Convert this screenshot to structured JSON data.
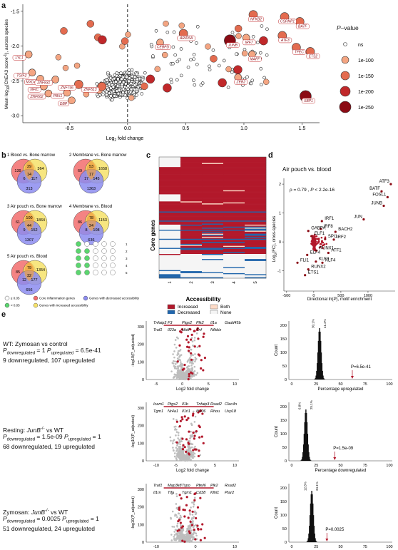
{
  "panels": {
    "a": "a",
    "b": "b",
    "c": "c",
    "d": "d",
    "e": "e"
  },
  "chart_data": [
    {
      "id": "a",
      "type": "scatter",
      "xlabel": "Log2 fold change",
      "ylabel": "Mean log10(ChEA3 score⁻¹), across species",
      "xlim": [
        -0.9,
        1.65
      ],
      "ylim": [
        -3.1,
        -1.4
      ],
      "xticks": [
        "-0.5",
        "0.0",
        "0.5",
        "1.0",
        "1.5"
      ],
      "yticks": [
        "-1.5",
        "-2.0",
        "-2.5",
        "-3.0"
      ],
      "legend": {
        "title": "P-value",
        "items": [
          "ns",
          "1e-100",
          "1e-150",
          "1e-200",
          "1e-250"
        ],
        "colors": [
          "#ffffff",
          "#f4a582",
          "#e36b4f",
          "#c0282a",
          "#8b0b14"
        ]
      },
      "labeled_points": [
        {
          "name": "NFKB2",
          "x": 1.08,
          "y": -1.55,
          "p": "1e-150"
        },
        {
          "name": "CSRNP1",
          "x": 1.35,
          "y": -1.58,
          "p": "1e-150"
        },
        {
          "name": "BATF",
          "x": 1.48,
          "y": -1.65,
          "p": "1e-150"
        },
        {
          "name": "ARID5A",
          "x": 0.48,
          "y": -1.82,
          "p": "1e-150"
        },
        {
          "name": "CEBPD",
          "x": 0.28,
          "y": -1.95,
          "p": "1e-100"
        },
        {
          "name": "JUNB",
          "x": 0.88,
          "y": -1.92,
          "p": "1e-250"
        },
        {
          "name": "IRF7",
          "x": 1.02,
          "y": -1.88,
          "p": "1e-100"
        },
        {
          "name": "ATF3",
          "x": 1.33,
          "y": -1.85,
          "p": "1e-150"
        },
        {
          "name": "TFEC",
          "x": 1.45,
          "y": -2.02,
          "p": "1e-150"
        },
        {
          "name": "ETS2",
          "x": 1.57,
          "y": -2.08,
          "p": "1e-150"
        },
        {
          "name": "MAFF",
          "x": 1.07,
          "y": -2.12,
          "p": "1e-100"
        },
        {
          "name": "ZEB2",
          "x": 0.95,
          "y": -2.45,
          "p": "1e-100"
        },
        {
          "name": "XBP1",
          "x": 1.53,
          "y": -2.72,
          "p": "1e-250"
        },
        {
          "name": "LYL1",
          "x": -0.85,
          "y": -2.12,
          "p": "1e-100"
        },
        {
          "name": "TGIF2",
          "x": -0.82,
          "y": -2.38,
          "p": "1e-100"
        },
        {
          "name": "MXD4",
          "x": -0.75,
          "y": -2.47,
          "p": "1e-100"
        },
        {
          "name": "ZNF831",
          "x": -0.62,
          "y": -2.48,
          "p": "1e-100"
        },
        {
          "name": "ZNF746",
          "x": -0.42,
          "y": -2.55,
          "p": "1e-150"
        },
        {
          "name": "NFIC",
          "x": -0.72,
          "y": -2.58,
          "p": "1e-100"
        },
        {
          "name": "ZNF513",
          "x": -0.22,
          "y": -2.58,
          "p": "1e-150"
        },
        {
          "name": "PBX1",
          "x": -0.52,
          "y": -2.67,
          "p": "1e-100"
        },
        {
          "name": "ZNF662",
          "x": -0.68,
          "y": -2.68,
          "p": "1e-100"
        },
        {
          "name": "DBP",
          "x": -0.48,
          "y": -2.78,
          "p": "1e-100"
        }
      ]
    },
    {
      "id": "d",
      "type": "scatter",
      "title": "Air pouch vs. blood",
      "xlabel": "Directional ln(P), motif enrichment",
      "ylabel": "Log2(FC), cross-species",
      "annotation": "ρ = 0.79 , P < 2.2e-16",
      "xlim": [
        -550,
        1500
      ],
      "ylim": [
        -1.7,
        2.2
      ],
      "xticks": [
        "-500",
        "0",
        "500",
        "1000"
      ],
      "yticks": [
        "2",
        "1",
        "0",
        "-1"
      ],
      "labeled_points": [
        {
          "name": "ATF3",
          "x": 1420,
          "y": 2.0
        },
        {
          "name": "BATF",
          "x": 1250,
          "y": 1.75
        },
        {
          "name": "FOSL1",
          "x": 1360,
          "y": 1.55
        },
        {
          "name": "JUNB",
          "x": 1290,
          "y": 1.25
        },
        {
          "name": "JUN",
          "x": 920,
          "y": 0.78
        },
        {
          "name": "IRF1",
          "x": 150,
          "y": 0.72
        },
        {
          "name": "BACH2",
          "x": 400,
          "y": 0.35
        },
        {
          "name": "IRF8",
          "x": 130,
          "y": 0.45
        },
        {
          "name": "GABPA",
          "x": -100,
          "y": 0.38
        },
        {
          "name": "IRF2",
          "x": 370,
          "y": 0.08
        },
        {
          "name": "SPI1",
          "x": 210,
          "y": 0.1
        },
        {
          "name": "ELF1",
          "x": -40,
          "y": 0.2
        },
        {
          "name": "RUNX1",
          "x": 50,
          "y": -0.3
        },
        {
          "name": "ATF1",
          "x": 270,
          "y": -0.38
        },
        {
          "name": "ELF4",
          "x": -120,
          "y": -0.45
        },
        {
          "name": "KLF3",
          "x": 40,
          "y": -0.68
        },
        {
          "name": "KLF4",
          "x": 160,
          "y": -0.72
        },
        {
          "name": "FLI1",
          "x": -300,
          "y": -0.72
        },
        {
          "name": "RUNX2",
          "x": -100,
          "y": -0.95
        },
        {
          "name": "ETS1",
          "x": -160,
          "y": -1.15
        }
      ]
    },
    {
      "id": "c",
      "type": "heatmap",
      "ylabel": "Core genes",
      "columns": [
        "1",
        "2",
        "3",
        "4",
        "5"
      ],
      "legend": {
        "title": "Accessibility",
        "items": [
          "Increased",
          "Both",
          "Decreased",
          "None"
        ],
        "colors": [
          "#b2182b",
          "#fddbc7",
          "#2166ac",
          "#f5f5f5"
        ]
      }
    },
    {
      "id": "e-volcano-1",
      "type": "scatter",
      "xlabel": "Log2 fold change",
      "ylabel": "-log10(P_adjusted)",
      "yticks": [
        "300",
        "200",
        "100",
        "0"
      ],
      "xticks": [
        "-5",
        "0",
        "5",
        "10"
      ],
      "labels": [
        "Tnfaip3",
        "F3",
        "Ptgs2",
        "Plk2",
        "Il1a",
        "Gadd45b",
        "Traf1",
        "Il23a",
        "Maff",
        "Tnf",
        "Nfkbiz"
      ]
    },
    {
      "id": "e-volcano-2",
      "type": "scatter",
      "xlabel": "Log2 fold change",
      "ylabel": "-log10(P_adjusted)",
      "yticks": [
        "300",
        "200",
        "100",
        "0"
      ],
      "xticks": [
        "-10",
        "-5",
        "0",
        "5",
        "10"
      ],
      "labels": [
        "Icam1",
        "Ptgs2",
        "Il1b",
        "Tnfaip3",
        "Rsad2",
        "Clec4n",
        "Tgm1",
        "Nr4a1",
        "Il1rl1",
        "Ifi206",
        "Rhou",
        "Usp18"
      ]
    },
    {
      "id": "e-volcano-3",
      "type": "scatter",
      "xlabel": "Log2 fold change",
      "ylabel": "-log10(P_adjusted)",
      "yticks": [
        "300",
        "200",
        "100",
        "0"
      ],
      "xticks": [
        "-10",
        "0",
        "10"
      ],
      "labels": [
        "Traf1",
        "Map3k8",
        "Tspo",
        "Pbxl6",
        "Plk2",
        "Rsad2",
        "Il1rn",
        "Tifa",
        "Tgm1",
        "Cd38",
        "Klhl1",
        "Ptar2"
      ]
    },
    {
      "id": "e-hist-1",
      "type": "bar",
      "xlabel": "Percentage upregulated",
      "ylabel": "Count",
      "xticks": [
        "0",
        "25",
        "50",
        "75",
        "100"
      ],
      "yticks": [
        "0",
        "50",
        "100",
        "150",
        "200"
      ],
      "annotations": [
        "30.1%",
        "41.2%"
      ],
      "pointer": "P=6.5e-41"
    },
    {
      "id": "e-hist-2",
      "type": "bar",
      "xlabel": "Percentage downregulated",
      "ylabel": "Count",
      "xticks": [
        "0",
        "25",
        "50",
        "75",
        "100"
      ],
      "yticks": [
        "0",
        "50",
        "100",
        "150",
        "200"
      ],
      "annotations": [
        "6.8%",
        "25.1%"
      ],
      "pointer": "P=1.5e-09"
    },
    {
      "id": "e-hist-3",
      "type": "bar",
      "xlabel": "Percentage downregulated",
      "ylabel": "Count",
      "xticks": [
        "0",
        "25",
        "50",
        "75",
        "100"
      ],
      "yticks": [
        "0",
        "50",
        "100",
        "150",
        "200"
      ],
      "annotations": [
        "12.8%",
        "34.1%"
      ],
      "pointer": "P=0.0025"
    }
  ],
  "venn": [
    {
      "title": "1 Blood vs. Bone marrow",
      "a": "139",
      "b": "364",
      "c": "313",
      "ab": "29",
      "abc": "14",
      "bc": "117",
      "ac": "6"
    },
    {
      "title": "2 Membrane vs. Bone marrow",
      "a": "69",
      "b": "1658",
      "c": "1363",
      "ab": "53",
      "abc": "17",
      "bc": "145",
      "ac": "17"
    },
    {
      "title": "3 Air pouch vs. Bone marrow",
      "a": "61",
      "b": "1864",
      "c": "1307",
      "ab": "100",
      "abc": "44",
      "bc": "152",
      "ac": "9"
    },
    {
      "title": "4 Membrane vs. Blood",
      "a": "86",
      "b": "1153",
      "c": "636",
      "ab": "78",
      "abc": "24",
      "bc": "108",
      "ac": "8"
    },
    {
      "title": "5 Air pouch vs. Blood",
      "a": "85",
      "b": "1354",
      "c": "656",
      "ab": "79",
      "abc": "32",
      "bc": "177",
      "ac": "12"
    }
  ],
  "venn_legend": [
    "≥ 0.05",
    "< 0.05",
    "Core inflammation genes",
    "Genes with increased accessibility",
    "Genes with decreased accessibility"
  ],
  "mini_matrix_rows": [
    "1",
    "2",
    "3",
    "4",
    "5"
  ],
  "e_rows": [
    {
      "line1": "WT: Zymosan vs control",
      "line2": "P_downregulated = 1  P_upregulated = 6.5e-41",
      "line3": "9 downregulated,  107 upregulated"
    },
    {
      "line1": "Resting: JunB-/- vs WT",
      "line2": "P_downregulated = 1.5e-09  P_upregulated = 1",
      "line3": "68 downregulated,  19 upregulated"
    },
    {
      "line1": "Zymosan: JunB-/- vs WT",
      "line2": "P_downregulated = 0.0025  P_upregulated = 1",
      "line3": "51 downregulated,  24 upregulated"
    }
  ]
}
